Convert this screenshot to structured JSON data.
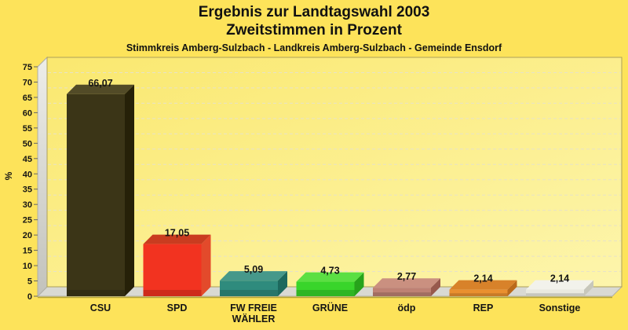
{
  "chart_data": {
    "type": "bar",
    "style": "3d-column",
    "title": "Ergebnis zur Landtagswahl 2003",
    "subtitle": "Zweitstimmen in Prozent",
    "caption": "Stimmkreis Amberg-Sulzbach - Landkreis Amberg-Sulzbach - Gemeinde Ensdorf",
    "xlabel": "",
    "ylabel": "%",
    "ylim": [
      0,
      75
    ],
    "ytick_step": 5,
    "grid": "horizontal-dashed",
    "legend": false,
    "categories": [
      "CSU",
      "SPD",
      "FW FREIE WÄHLER",
      "GRÜNE",
      "ödp",
      "REP",
      "Sonstige"
    ],
    "values": [
      66.07,
      17.05,
      5.09,
      4.73,
      2.77,
      2.14,
      2.14
    ],
    "value_labels": [
      "66,07",
      "17,05",
      "5,09",
      "4,73",
      "2,77",
      "2,14",
      "2,14"
    ],
    "bars": [
      {
        "id": "csu",
        "label": "CSU",
        "value": 66.07,
        "value_label": "66,07",
        "front": "#3B3517",
        "top": "#524B27",
        "side": "#262108"
      },
      {
        "id": "spd",
        "label": "SPD",
        "value": 17.05,
        "value_label": "17,05",
        "front": "#F23320",
        "top": "#C93C20",
        "side": "#E34A2B"
      },
      {
        "id": "fw-freie-waehler",
        "label": "FW FREIE\nWÄHLER",
        "value": 5.09,
        "value_label": "5,09",
        "front": "#2F8B7D",
        "top": "#46988A",
        "side": "#1D695D"
      },
      {
        "id": "gruene",
        "label": "GRÜNE",
        "value": 4.73,
        "value_label": "4,73",
        "front": "#39D52B",
        "top": "#5BDF43",
        "side": "#27A31B"
      },
      {
        "id": "oedp",
        "label": "ödp",
        "value": 2.77,
        "value_label": "2,77",
        "front": "#BE8174",
        "top": "#CA9080",
        "side": "#97594D"
      },
      {
        "id": "rep",
        "label": "REP",
        "value": 2.14,
        "value_label": "2,14",
        "front": "#EA902F",
        "top": "#D8822A",
        "side": "#BA6A1A"
      },
      {
        "id": "sonstige",
        "label": "Sonstige",
        "value": 2.14,
        "value_label": "2,14",
        "front": "#E9E9DF",
        "top": "#F2F2EB",
        "side": "#C7C7BB"
      }
    ],
    "palette": {
      "page_bg": "#FDE35A",
      "wall_top_left": "#FAE86F",
      "wall_bottom_right": "#FDF5AC",
      "wall_border": "#ADA05A",
      "side_wall_light": "#EDEDE9",
      "side_wall_dark": "#C2C2BC",
      "floor": "#D9D9D3",
      "floor_border": "#AFAFA7",
      "grid_line": "#E7E2C8",
      "base_line": "#B5A434",
      "tick_mark": "#666666",
      "text": "#141414"
    }
  }
}
